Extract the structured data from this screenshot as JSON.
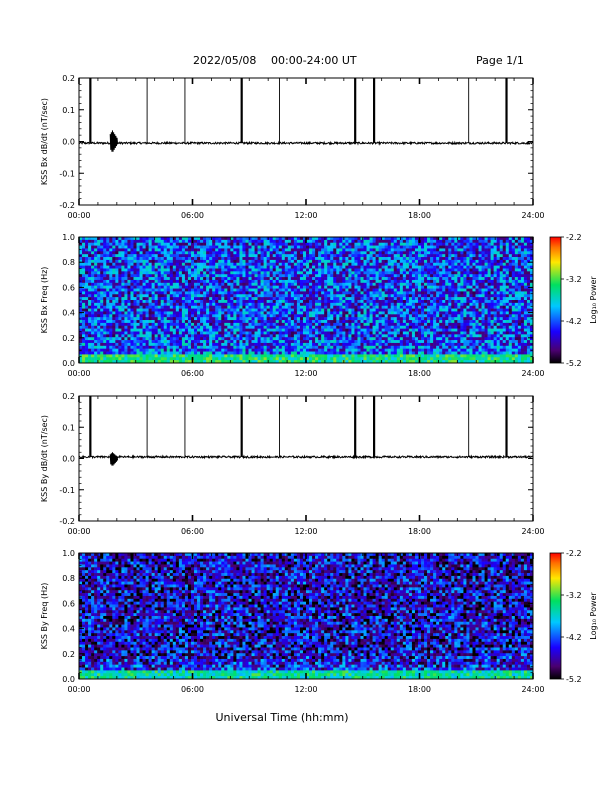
{
  "page": {
    "header_date": "2022/05/08",
    "header_range": "00:00-24:00 UT",
    "page_label": "Page 1/1",
    "x_axis_title": "Universal Time (hh:mm)"
  },
  "chart_data": [
    {
      "id": "bx-timeseries",
      "type": "line",
      "ylabel": "KSS Bx dB/dt (nT/sec)",
      "xlim": [
        0,
        24
      ],
      "ylim": [
        -0.2,
        0.2
      ],
      "x_ticks": [
        "00:00",
        "06:00",
        "12:00",
        "18:00",
        "24:00"
      ],
      "y_ticks": [
        "0.2",
        "0.1",
        "0.0",
        "-0.1",
        "-0.2"
      ],
      "baseline": -0.005,
      "data_gap_markers_hours": [
        0.6,
        3.6,
        5.6,
        8.6,
        10.6,
        14.6,
        15.6,
        20.6,
        22.6
      ],
      "thick_markers_hours": [
        0.6,
        8.6,
        14.6,
        15.6,
        22.6
      ],
      "spike": {
        "hour": 1.85,
        "max": 0.035,
        "min": -0.035
      }
    },
    {
      "id": "bx-spectrogram",
      "type": "heatmap",
      "ylabel": "KSS Bx Freq (Hz)",
      "colorbar_label": "Log₁₀ Power",
      "xlim": [
        0,
        24
      ],
      "ylim": [
        0,
        1.0
      ],
      "x_ticks": [
        "00:00",
        "06:00",
        "12:00",
        "18:00",
        "24:00"
      ],
      "y_ticks": [
        "1.0",
        "0.8",
        "0.6",
        "0.4",
        "0.2",
        "0.0"
      ],
      "colorbar_range": [
        -5.2,
        -2.2
      ],
      "colorbar_ticks": [
        "-2.2",
        "-3.2",
        "-4.2",
        "-5.2"
      ],
      "dominant_level": -4.3,
      "low_freq_enhanced_level": -3.6
    },
    {
      "id": "by-timeseries",
      "type": "line",
      "ylabel": "KSS By dB/dt (nT/sec)",
      "xlim": [
        0,
        24
      ],
      "ylim": [
        -0.2,
        0.2
      ],
      "x_ticks": [
        "00:00",
        "06:00",
        "12:00",
        "18:00",
        "24:00"
      ],
      "y_ticks": [
        "0.2",
        "0.1",
        "0.0",
        "-0.1",
        "-0.2"
      ],
      "baseline": 0.005,
      "data_gap_markers_hours": [
        0.6,
        3.6,
        5.6,
        8.6,
        10.6,
        14.6,
        15.6,
        20.6,
        22.6
      ],
      "thick_markers_hours": [
        0.6,
        8.6,
        14.6,
        15.6,
        22.6
      ],
      "spike": {
        "hour": 1.85,
        "max": 0.02,
        "min": -0.025
      }
    },
    {
      "id": "by-spectrogram",
      "type": "heatmap",
      "ylabel": "KSS By Freq (Hz)",
      "colorbar_label": "Log₁₀ Power",
      "xlim": [
        0,
        24
      ],
      "ylim": [
        0,
        1.0
      ],
      "x_ticks": [
        "00:00",
        "06:00",
        "12:00",
        "18:00",
        "24:00"
      ],
      "y_ticks": [
        "1.0",
        "0.8",
        "0.6",
        "0.4",
        "0.2",
        "0.0"
      ],
      "colorbar_range": [
        -5.2,
        -2.2
      ],
      "colorbar_ticks": [
        "-2.2",
        "-3.2",
        "-4.2",
        "-5.2"
      ],
      "dominant_level": -4.6,
      "low_freq_enhanced_level": -3.7
    }
  ]
}
